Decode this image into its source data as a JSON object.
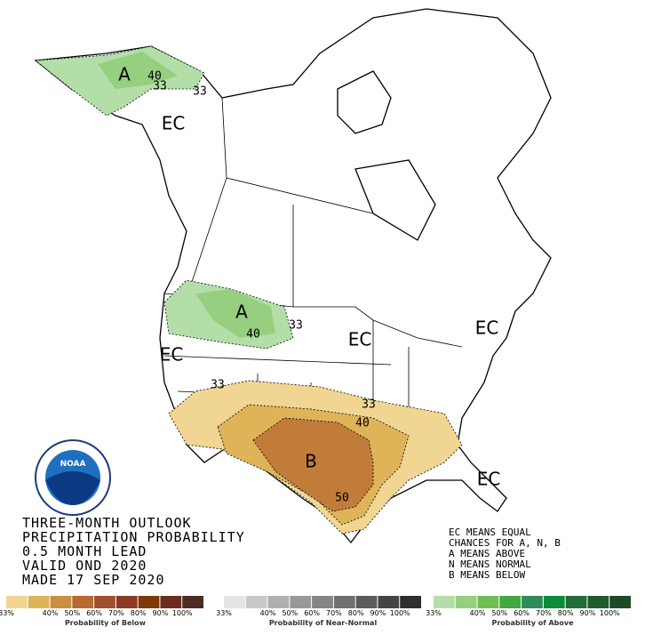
{
  "map": {
    "labels": [
      "A",
      "40",
      "33",
      "33",
      "EC",
      "A",
      "40",
      "33",
      "EC",
      "EC",
      "EC",
      "33",
      "33",
      "40",
      "B",
      "50",
      "EC"
    ],
    "logo": "NOAA"
  },
  "title_lines": [
    "THREE-MONTH OUTLOOK",
    "PRECIPITATION PROBABILITY",
    "0.5 MONTH LEAD",
    "VALID OND 2020",
    "MADE 17 SEP 2020"
  ],
  "key_lines": [
    "EC MEANS EQUAL",
    "CHANCES FOR A, N, B",
    "A MEANS ABOVE",
    "N MEANS NORMAL",
    "B MEANS BELOW"
  ],
  "legend": [
    {
      "title": "Probability of Below",
      "colors": [
        "#f1d592",
        "#dfb459",
        "#c9903f",
        "#b86a31",
        "#a1502d",
        "#8c3a26",
        "#7b3a08",
        "#6b2e1e",
        "#4f2a25"
      ],
      "ticks": [
        "33%",
        "40%",
        "50%",
        "60%",
        "70%",
        "80%",
        "90%",
        "100%"
      ]
    },
    {
      "title": "Probability of Near-Normal",
      "colors": [
        "#e5e5e5",
        "#c9c9c9",
        "#b0b0b0",
        "#999999",
        "#858585",
        "#707070",
        "#5b5b5b",
        "#454545",
        "#2e2e2e"
      ],
      "ticks": [
        "33%",
        "40%",
        "50%",
        "60%",
        "70%",
        "80%",
        "90%",
        "100%"
      ]
    },
    {
      "title": "Probability of Above",
      "colors": [
        "#b3dea8",
        "#95cf7f",
        "#6fbf55",
        "#40a742",
        "#2f8c56",
        "#0c8c3b",
        "#1f6e3a",
        "#205a30",
        "#1d4a26"
      ],
      "ticks": [
        "33%",
        "40%",
        "50%",
        "60%",
        "70%",
        "80%",
        "90%",
        "100%"
      ]
    }
  ]
}
